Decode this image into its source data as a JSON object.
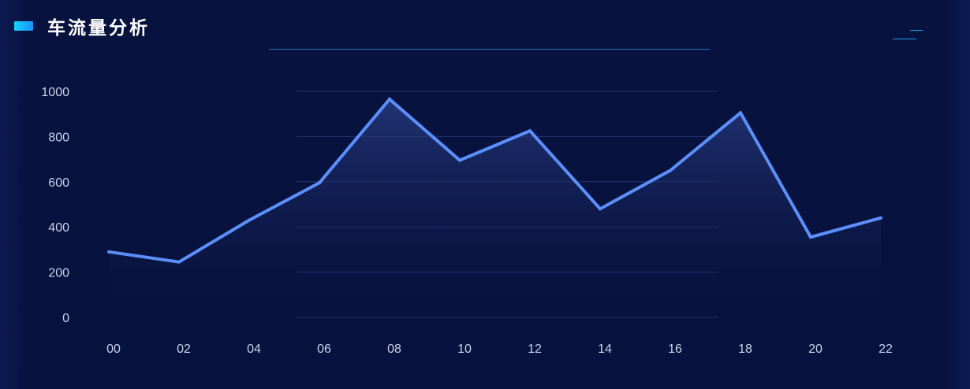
{
  "panel": {
    "title": "车流量分析"
  },
  "chart_data": {
    "type": "area",
    "title": "车流量分析",
    "xlabel": "",
    "ylabel": "",
    "x": [
      "00",
      "02",
      "04",
      "06",
      "08",
      "10",
      "12",
      "14",
      "16",
      "18",
      "20",
      "22"
    ],
    "series": [
      {
        "values": [
          290,
          245,
          430,
          595,
          965,
          695,
          825,
          480,
          650,
          905,
          355,
          440
        ]
      }
    ],
    "yticks": [
      "0",
      "200",
      "400",
      "600",
      "800",
      "1000"
    ],
    "ylim": [
      0,
      1000
    ],
    "grid": true,
    "legend": "none",
    "colors": {
      "line": "#5b8ff9",
      "area_top": "#2a3f86",
      "grid": "#26356f"
    }
  }
}
